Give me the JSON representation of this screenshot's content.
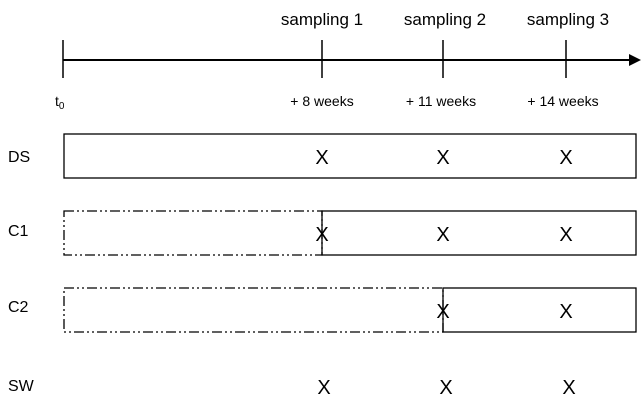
{
  "timeline": {
    "start_label": "t",
    "start_subscript": "0",
    "samplings": [
      {
        "label": "sampling 1",
        "time": "+ 8 weeks"
      },
      {
        "label": "sampling 2",
        "time": "+ 11 weeks"
      },
      {
        "label": "sampling 3",
        "time": "+ 14 weeks"
      }
    ]
  },
  "rows": [
    {
      "id": "ds",
      "label": "DS",
      "mark": "X"
    },
    {
      "id": "c1",
      "label": "C1",
      "mark": "X"
    },
    {
      "id": "c2",
      "label": "C2",
      "mark": "X"
    },
    {
      "id": "sw",
      "label": "SW",
      "mark": "X"
    }
  ]
}
